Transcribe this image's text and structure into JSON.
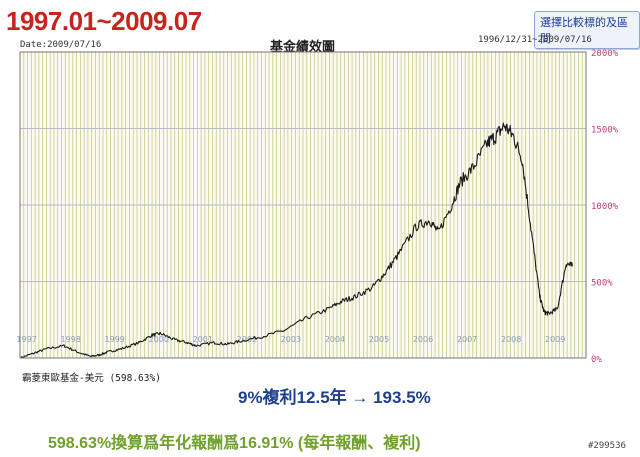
{
  "page": {
    "period_title": "1997.01~2009.07",
    "compare_button": "選擇比較標的及區間",
    "date_label": "Date:2009/07/16",
    "stamp": "#299536"
  },
  "annotations": {
    "compound": "9%複利12.5年 → 193.5%",
    "annualized": "598.63%換算爲年化報酬爲16.91% (每年報酬、複利)"
  },
  "colors": {
    "grid_vertical": "#c8c88a",
    "grid_horizontal": "#b7bcc8",
    "line": "#1a1a1a",
    "red_title": "#c8241f",
    "blue_text": "#1f3f8f",
    "green_text": "#6fa12b"
  },
  "chart_data": {
    "type": "line",
    "title": "基金績效圖",
    "range_label": "1996/12/31~2009/07/16",
    "series_label": "霸菱東歐基金-美元 (598.63%)",
    "ylim": [
      0,
      2000
    ],
    "y_ticks": [
      "0%",
      "500%",
      "1000%",
      "1500%",
      "2000%"
    ],
    "x_ticks": [
      "1997",
      "1998",
      "1999",
      "2000",
      "2001",
      "2002",
      "2003",
      "2004",
      "2005",
      "2006",
      "2007",
      "2008",
      "2009"
    ],
    "grid": true,
    "series": [
      {
        "x": [
          1997.0,
          1997.3,
          1997.6,
          1998.0,
          1998.3,
          1998.6,
          1998.8,
          1999.0,
          1999.3,
          1999.7,
          2000.0,
          2000.2,
          2000.5,
          2000.8,
          2001.0,
          2001.4,
          2001.7,
          2002.0,
          2002.5,
          2003.0,
          2003.5,
          2004.0,
          2004.3,
          2004.6,
          2005.0,
          2005.3,
          2005.6,
          2006.0,
          2006.3,
          2006.5,
          2006.8,
          2007.0,
          2007.3,
          2007.6,
          2007.8,
          2008.0,
          2008.2,
          2008.4,
          2008.6,
          2008.8,
          2008.9,
          2009.0,
          2009.2,
          2009.4,
          2009.54
        ],
        "values": [
          0,
          30,
          60,
          80,
          40,
          10,
          20,
          40,
          60,
          100,
          150,
          160,
          120,
          100,
          80,
          100,
          90,
          110,
          140,
          180,
          260,
          320,
          370,
          400,
          460,
          560,
          680,
          860,
          900,
          820,
          1000,
          1150,
          1250,
          1400,
          1450,
          1520,
          1450,
          1300,
          850,
          400,
          300,
          290,
          320,
          620,
          598.63
        ]
      }
    ]
  }
}
